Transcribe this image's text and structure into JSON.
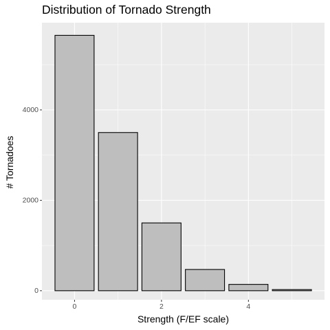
{
  "chart_data": {
    "type": "bar",
    "title": "Distribution of Tornado Strength",
    "xlabel": "Strength (F/EF scale)",
    "ylabel": "# Tornadoes",
    "categories": [
      "0",
      "1",
      "2",
      "3",
      "4",
      "5"
    ],
    "x": [
      0,
      1,
      2,
      3,
      4,
      5
    ],
    "values": [
      5650,
      3500,
      1500,
      470,
      140,
      25
    ],
    "xlim": [
      -0.75,
      5.75
    ],
    "ylim": [
      -200,
      5930
    ],
    "x_ticks": [
      0,
      2,
      4
    ],
    "x_tick_labels": [
      "0",
      "2",
      "4"
    ],
    "y_ticks": [
      0,
      2000,
      4000
    ],
    "y_tick_labels": [
      "0",
      "2000",
      "4000"
    ],
    "grid": true,
    "legend": "none",
    "colors": {
      "panel_background": "#ebebeb",
      "grid_major": "#ffffff",
      "bar_fill": "#bebebe",
      "bar_outline": "#000000",
      "tick_text": "#4d4d4d",
      "tick_mark": "#333333"
    }
  }
}
